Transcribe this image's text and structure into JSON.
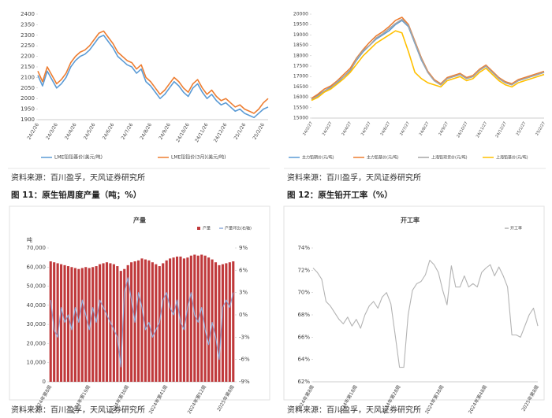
{
  "chart_data": [
    {
      "type": "line",
      "categories": [
        "24/2/26",
        null,
        null,
        null,
        "24/3/26",
        null,
        null,
        null,
        "24/4/26",
        null,
        null,
        null,
        "24/5/26",
        null,
        null,
        null,
        "24/6/26",
        null,
        null,
        null,
        "24/7/26",
        null,
        null,
        null,
        "24/8/26",
        null,
        null,
        null,
        "24/9/26",
        null,
        null,
        null,
        "24/10/26",
        null,
        null,
        null,
        "24/11/26",
        null,
        null,
        null,
        "24/12/26",
        null,
        null,
        null,
        "25/1/26",
        null,
        null,
        null,
        "25/2/26",
        null
      ],
      "ylim": [
        1900,
        2400
      ],
      "yticks": [
        1900,
        1950,
        2000,
        2050,
        2100,
        2150,
        2200,
        2250,
        2300,
        2350,
        2400
      ],
      "grid": false,
      "series": [
        {
          "name": "LME铅铅基价(美元/吨)",
          "color": "#5b9bd5",
          "values": [
            2110,
            2060,
            2130,
            2090,
            2050,
            2070,
            2100,
            2150,
            2180,
            2200,
            2210,
            2230,
            2260,
            2290,
            2300,
            2270,
            2240,
            2200,
            2180,
            2160,
            2150,
            2120,
            2140,
            2080,
            2060,
            2030,
            2000,
            2020,
            2050,
            2080,
            2060,
            2030,
            2010,
            2050,
            2070,
            2030,
            2000,
            2020,
            1990,
            1970,
            1980,
            1960,
            1940,
            1950,
            1930,
            1920,
            1910,
            1930,
            1950,
            1960
          ]
        },
        {
          "name": "LME铅铅价(3月)(美元/吨)",
          "color": "#ed7d31",
          "values": [
            2130,
            2080,
            2150,
            2110,
            2070,
            2090,
            2120,
            2170,
            2200,
            2220,
            2230,
            2250,
            2280,
            2310,
            2320,
            2290,
            2260,
            2220,
            2200,
            2180,
            2170,
            2140,
            2160,
            2100,
            2080,
            2050,
            2020,
            2040,
            2070,
            2100,
            2080,
            2050,
            2030,
            2070,
            2090,
            2050,
            2020,
            2040,
            2010,
            1990,
            2000,
            1980,
            1960,
            1970,
            1950,
            1940,
            1930,
            1950,
            1980,
            2000
          ]
        }
      ]
    },
    {
      "type": "line",
      "categories": [
        "24/2/27",
        null,
        null,
        "24/3/27",
        null,
        null,
        "24/4/27",
        null,
        null,
        "24/5/27",
        null,
        null,
        "24/6/27",
        null,
        null,
        "24/7/27",
        null,
        null,
        "24/8/27",
        null,
        null,
        "24/9/27",
        null,
        null,
        "24/10/27",
        null,
        null,
        "24/11/27",
        null,
        null,
        "24/12/27",
        null,
        null,
        "25/1/27",
        null,
        null,
        "25/2/27"
      ],
      "ylim": [
        15000,
        20000
      ],
      "yticks": [
        15000,
        15500,
        16000,
        16500,
        17000,
        17500,
        18000,
        18500,
        19000,
        19500,
        20000
      ],
      "grid": false,
      "series": [
        {
          "name": "主力铅期价(元/吨)",
          "color": "#5b9bd5",
          "values": [
            15900,
            16100,
            16300,
            16500,
            16700,
            17000,
            17300,
            17800,
            18200,
            18500,
            18800,
            19000,
            19200,
            19500,
            19700,
            19400,
            18600,
            17800,
            17200,
            16800,
            16600,
            16900,
            17000,
            17100,
            16900,
            17000,
            17300,
            17500,
            17200,
            16900,
            16700,
            16600,
            16800,
            16900,
            17000,
            17100,
            17200
          ]
        },
        {
          "name": "主力铅基价(元/吨)",
          "color": "#ed7d31",
          "values": [
            15950,
            16150,
            16400,
            16550,
            16800,
            17100,
            17400,
            17900,
            18300,
            18650,
            18950,
            19150,
            19400,
            19700,
            19850,
            19500,
            18700,
            17900,
            17250,
            16850,
            16650,
            16950,
            17050,
            17150,
            16950,
            17050,
            17350,
            17550,
            17250,
            16950,
            16750,
            16650,
            16850,
            16950,
            17050,
            17150,
            17250
          ]
        },
        {
          "name": "上海铅现货价(元/吨)",
          "color": "#a5a5a5",
          "values": [
            15900,
            16050,
            16300,
            16450,
            16750,
            17000,
            17250,
            17850,
            18250,
            18500,
            18850,
            19050,
            19300,
            19550,
            19750,
            19450,
            18650,
            17850,
            17200,
            16800,
            16600,
            16900,
            17000,
            17100,
            16900,
            17000,
            17300,
            17500,
            17200,
            16900,
            16700,
            16600,
            16800,
            16900,
            17000,
            17100,
            17200
          ]
        },
        {
          "name": "上海铅基价(元/吨)",
          "color": "#ffc000",
          "values": [
            15850,
            16000,
            16250,
            16400,
            16650,
            16900,
            17200,
            17600,
            18000,
            18300,
            18600,
            18800,
            19000,
            19200,
            19100,
            18200,
            17200,
            16900,
            16700,
            16600,
            16500,
            16800,
            16900,
            17000,
            16800,
            16900,
            17200,
            17400,
            17100,
            16800,
            16600,
            16500,
            16700,
            16800,
            16900,
            17000,
            17100
          ]
        }
      ]
    },
    {
      "type": "bar",
      "title": "产量",
      "y_unit_label": "吨",
      "categories": [
        "2024年第8周",
        null,
        null,
        null,
        null,
        null,
        null,
        null,
        null,
        null,
        null,
        "2024年第19周",
        null,
        null,
        null,
        null,
        null,
        null,
        null,
        null,
        null,
        null,
        "2024年第30周",
        null,
        null,
        null,
        null,
        null,
        null,
        null,
        null,
        null,
        null,
        "2024年第41周",
        null,
        null,
        null,
        null,
        null,
        null,
        null,
        null,
        null,
        null,
        "2024年第52周",
        null,
        null,
        null,
        null,
        null,
        null,
        null,
        "2025年第8周"
      ],
      "ylim": [
        0,
        70000
      ],
      "yticks": [
        0,
        {
          "value": 10000,
          "label": "10,000"
        },
        {
          "value": 20000,
          "label": "20,000"
        },
        {
          "value": 30000,
          "label": "30,000"
        },
        {
          "value": 40000,
          "label": "40,000"
        },
        {
          "value": 50000,
          "label": "50,000"
        },
        {
          "value": 60000,
          "label": "60,000"
        },
        {
          "value": 70000,
          "label": "70,000"
        }
      ],
      "y2lim": [
        -9,
        9
      ],
      "y2ticks": [
        {
          "value": -9,
          "label": "-9%"
        },
        {
          "value": -6,
          "label": "-6%"
        },
        {
          "value": -3,
          "label": "-3%"
        },
        {
          "value": 0,
          "label": "0%"
        },
        {
          "value": 3,
          "label": "3%"
        },
        {
          "value": 6,
          "label": "6%"
        },
        {
          "value": 9,
          "label": "9%"
        }
      ],
      "grid": false,
      "series": [
        {
          "name": "产量",
          "color": "#c0393b",
          "values": [
            63000,
            62500,
            62000,
            61500,
            61000,
            60500,
            60000,
            59500,
            59000,
            59500,
            60000,
            59500,
            60000,
            60500,
            61500,
            62000,
            62500,
            62000,
            61500,
            60500,
            58000,
            59000,
            61000,
            62500,
            63000,
            63500,
            64500,
            64000,
            63500,
            62500,
            61500,
            60500,
            62000,
            63500,
            64500,
            65000,
            65500,
            65500,
            64500,
            65000,
            66000,
            66500,
            66000,
            66500,
            66000,
            65000,
            64000,
            62500,
            61000,
            61500,
            62000,
            62500,
            63000
          ]
        },
        {
          "name": "产量环比(右轴)",
          "color": "#8eaadb",
          "axis": "y2",
          "values": [
            2,
            -2,
            -3,
            1,
            -1,
            0,
            -2,
            1,
            -1,
            2,
            0,
            -2,
            1,
            -1,
            2,
            1,
            0,
            -1,
            -2,
            -3,
            -7,
            3,
            5,
            2,
            -1,
            3,
            1,
            -2,
            -1,
            -3,
            -2,
            -1,
            2,
            3,
            1,
            0,
            2,
            -1,
            -2,
            1,
            3,
            0,
            -1,
            1,
            -2,
            -4,
            -1,
            -3,
            -6,
            1,
            2,
            1,
            3
          ]
        }
      ]
    },
    {
      "type": "line",
      "title": "开工率",
      "categories": [
        "2024年第8周",
        null,
        null,
        null,
        null,
        null,
        null,
        null,
        null,
        null,
        "2024年第18周",
        null,
        null,
        null,
        null,
        null,
        null,
        null,
        null,
        null,
        "2024年第28周",
        null,
        null,
        null,
        null,
        null,
        null,
        null,
        null,
        null,
        "2024年第38周",
        null,
        null,
        null,
        null,
        null,
        null,
        null,
        null,
        null,
        "2024年第48周",
        null,
        null,
        null,
        null,
        null,
        null,
        null,
        null,
        null,
        null,
        null,
        "2025年第8周"
      ],
      "ylim": [
        62,
        74
      ],
      "yticks": [
        {
          "value": 62,
          "label": "62%"
        },
        {
          "value": 64,
          "label": "64%"
        },
        {
          "value": 66,
          "label": "66%"
        },
        {
          "value": 68,
          "label": "68%"
        },
        {
          "value": 70,
          "label": "70%"
        },
        {
          "value": 72,
          "label": "72%"
        },
        {
          "value": 74,
          "label": "74%"
        }
      ],
      "grid": false,
      "series": [
        {
          "name": "开工率",
          "color": "#b3b3b3",
          "values": [
            72.2,
            71.8,
            71.2,
            69.2,
            68.8,
            68.2,
            67.6,
            67.2,
            67.8,
            67.0,
            67.6,
            66.8,
            68.0,
            68.8,
            69.2,
            68.6,
            69.6,
            70.0,
            69.0,
            66.2,
            63.3,
            63.3,
            68.0,
            70.2,
            70.8,
            71.0,
            71.6,
            72.9,
            72.5,
            71.8,
            70.2,
            68.9,
            72.4,
            70.5,
            70.5,
            71.5,
            70.5,
            70.8,
            70.5,
            71.8,
            72.2,
            72.5,
            71.5,
            72.3,
            71.5,
            70.5,
            66.2,
            66.2,
            66.0,
            67.0,
            68.0,
            68.6,
            67.0
          ]
        }
      ]
    }
  ],
  "source_notes": [
    "资料来源：百川盈孚，天风证券研究所",
    "资料来源：百川盈孚，天风证券研究所",
    "资料来源：百川盈孚，天风证券研究所",
    "资料来源：百川盈孚，天风证券研究所"
  ],
  "figure_titles": [
    "图 11：原生铅周度产量（吨；%）",
    "图 12：原生铅开工率（%）"
  ]
}
